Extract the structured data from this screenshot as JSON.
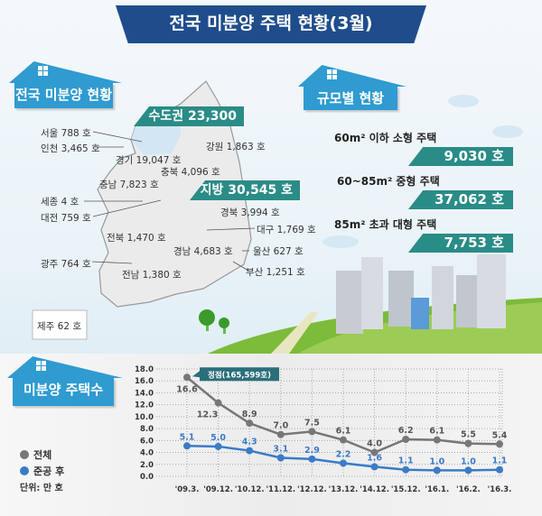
{
  "title": "전국 미분양 주택 현황(3월)",
  "sections": {
    "national": "전국 미분양 현황",
    "by_size": "규모별 현황",
    "count": "미분양 주택수"
  },
  "regions": {
    "capital_banner": "수도권 23,300 호",
    "local_banner": "지방 30,545 호",
    "seoul": "서울 788 호",
    "incheon": "인천 3,465 호",
    "gyeonggi": "경기 19,047 호",
    "gangwon": "강원 1,863 호",
    "chungbuk": "충북 4,096 호",
    "chungnam": "충남 7,823 호",
    "sejong": "세종 4 호",
    "daejeon": "대전 759 호",
    "gyeongbuk": "경북 3,994 호",
    "daegu": "대구 1,769 호",
    "jeonbuk": "전북 1,470 호",
    "gyeongnam": "경남 4,683 호",
    "ulsan": "울산 627 호",
    "gwangju": "광주 764 호",
    "jeonnam": "전남 1,380 호",
    "busan": "부산 1,251 호",
    "jeju": "제주 62 호"
  },
  "sizes": [
    {
      "label": "60m² 이하 소형 주택",
      "value": "9,030 호"
    },
    {
      "label": "60~85m²  중형 주택",
      "value": "37,062 호"
    },
    {
      "label": "85m² 초과 대형 주택",
      "value": "7,753 호"
    }
  ],
  "legend": {
    "total": "전체",
    "completed": "준공 후",
    "unit": "단위: 만 호"
  },
  "colors": {
    "title": "#1f4d8c",
    "section": "#2f9bd1",
    "banner": "#2a8c87",
    "total": "#777777",
    "completed": "#3a7bc8"
  },
  "chart_data": {
    "type": "line",
    "categories": [
      "'09.3.",
      "'09.12.",
      "'10.12.",
      "'11.12.",
      "'12.12.",
      "'13.12.",
      "'14.12.",
      "'15.12.",
      "'16.1.",
      "'16.2.",
      "'16.3."
    ],
    "series": [
      {
        "name": "전체",
        "values": [
          16.6,
          12.3,
          8.9,
          7.0,
          7.5,
          6.1,
          4.0,
          6.2,
          6.1,
          5.5,
          5.4
        ],
        "color": "#777777"
      },
      {
        "name": "준공 후",
        "values": [
          5.1,
          5.0,
          4.3,
          3.1,
          2.9,
          2.2,
          1.6,
          1.1,
          1.0,
          1.0,
          1.1
        ],
        "color": "#3a7bc8"
      }
    ],
    "yticks": [
      "0.0",
      "2.0",
      "4.0",
      "6.0",
      "8.0",
      "10.0",
      "12.0",
      "14.0",
      "16.0",
      "18.0"
    ],
    "ylim": [
      0,
      18
    ],
    "grid": true,
    "annotation": "정점(165,599호)",
    "ylabel": "",
    "xlabel": ""
  }
}
